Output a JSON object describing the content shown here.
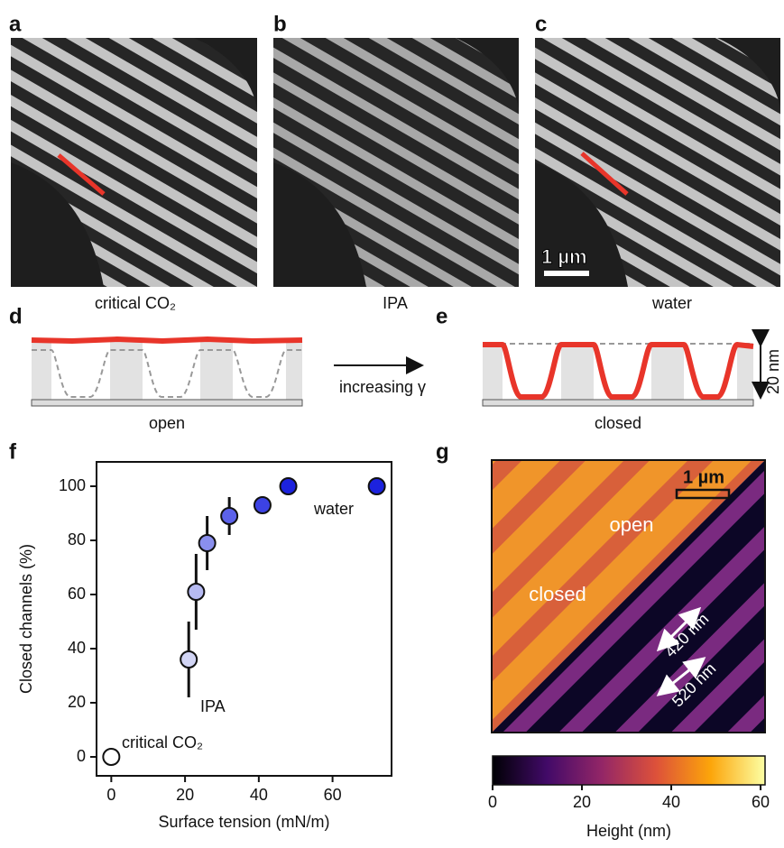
{
  "figure": {
    "panel_labels": [
      "a",
      "b",
      "c",
      "d",
      "e",
      "f",
      "g"
    ],
    "captions": [
      "critical CO₂",
      "IPA",
      "water"
    ],
    "scale_bar": "1 µm",
    "diagram": {
      "open": "open",
      "closed": "closed",
      "arrow": "increasing γ",
      "depth": "20 nm"
    },
    "afm": {
      "open": "open",
      "closed": "closed",
      "widths": [
        "420 nm",
        "520 nm"
      ],
      "scale_bar": "1 µm"
    }
  },
  "chart_data": [
    {
      "type": "scatter",
      "xlabel": "Surface tension (mN/m)",
      "ylabel": "Closed channels (%)",
      "x": [
        0,
        21,
        23,
        26,
        32,
        41,
        48,
        72
      ],
      "values": [
        0,
        36,
        61,
        79,
        89,
        93,
        100,
        100
      ],
      "errors": [
        null,
        14,
        14,
        10,
        7,
        null,
        null,
        null
      ],
      "colors": [
        "#ffffff",
        "#d2d5f5",
        "#b6baf2",
        "#8a8fee",
        "#5c62ea",
        "#3c42e4",
        "#1c22de",
        "#1c22de"
      ],
      "annotations": [
        "critical CO₂",
        "IPA",
        "water"
      ],
      "xlim": [
        -4,
        76
      ],
      "ylim": [
        -7,
        109
      ],
      "xticks": [
        0,
        20,
        40,
        60
      ],
      "yticks": [
        0,
        20,
        40,
        60,
        80,
        100
      ]
    },
    {
      "type": "colorbar",
      "xlabel": "Height (nm)",
      "xlim": [
        0,
        61
      ],
      "xticks": [
        0,
        20,
        40,
        60
      ],
      "colors": [
        "#000004",
        "#420a68",
        "#932667",
        "#dd513a",
        "#fca50a",
        "#fcffa4"
      ]
    }
  ]
}
